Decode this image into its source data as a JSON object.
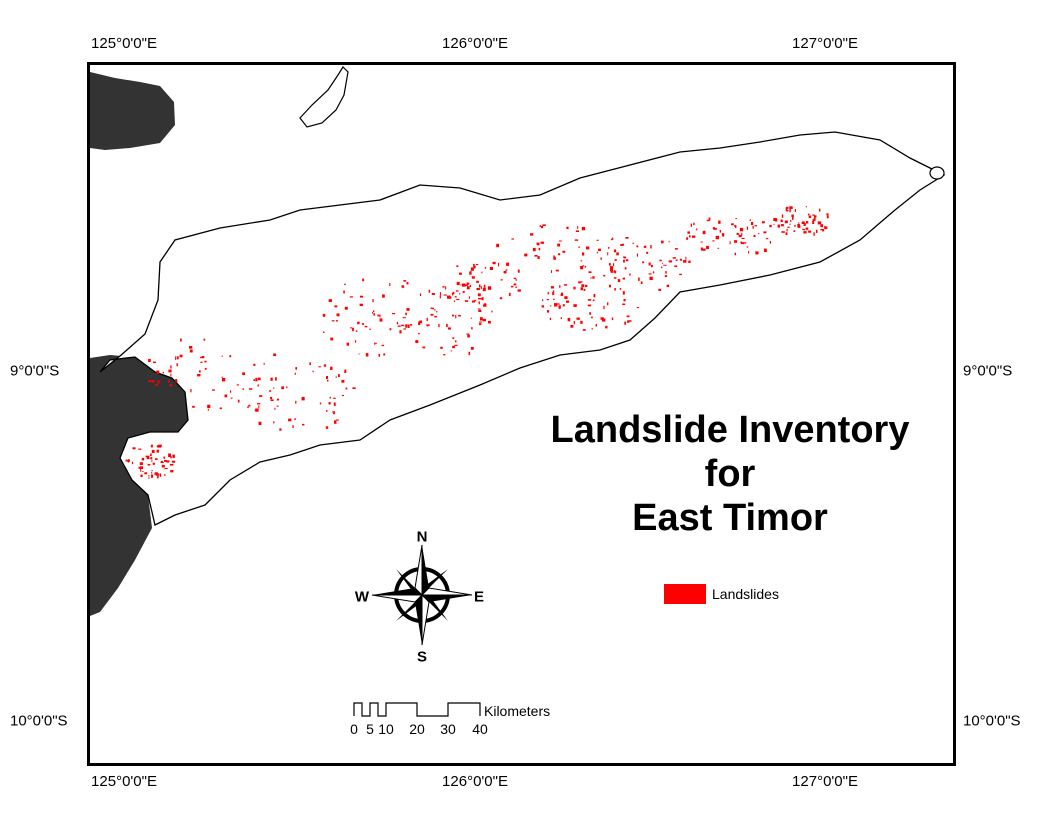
{
  "map": {
    "title_lines": [
      "Landslide Inventory",
      "for",
      "East Timor"
    ],
    "graticule": {
      "top": [
        "125°0'0\"E",
        "126°0'0\"E",
        "127°0'0\"E"
      ],
      "bottom": [
        "125°0'0\"E",
        "126°0'0\"E",
        "127°0'0\"E"
      ],
      "left": [
        "9°0'0\"S",
        "10°0'0\"S"
      ],
      "right": [
        "9°0'0\"S",
        "10°0'0\"S"
      ]
    },
    "legend": {
      "label": "Landslides",
      "color": "#ff0000"
    },
    "compass": {
      "n": "N",
      "s": "S",
      "e": "E",
      "w": "W"
    },
    "scale_bar": {
      "ticks": [
        "0",
        "5",
        "10",
        "20",
        "30",
        "40"
      ],
      "unit": "Kilometers"
    },
    "colors": {
      "land": "#333333",
      "outline": "#000000",
      "landslide": "#ff0000"
    }
  }
}
